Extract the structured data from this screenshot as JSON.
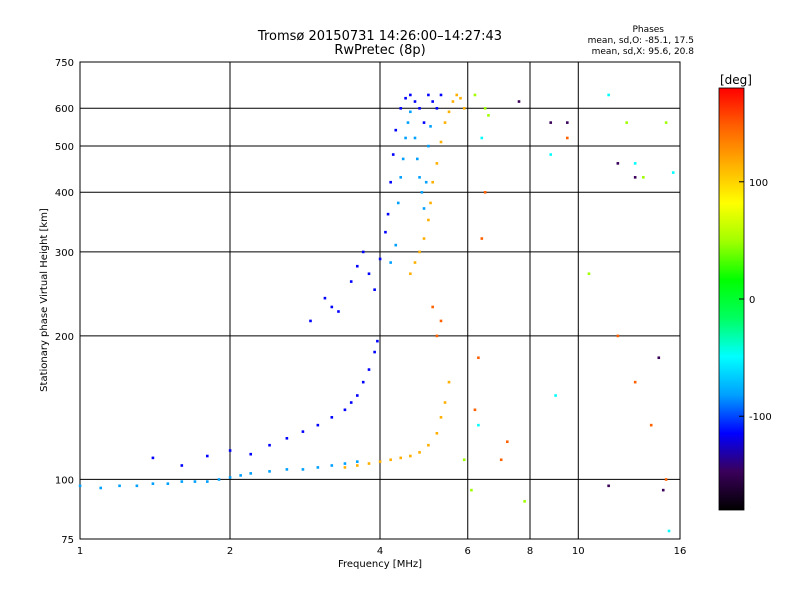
{
  "chart_data": {
    "type": "scatter",
    "title": "Tromsø 20150731 14:26:00–14:27:43",
    "subtitle": "RwPretec (8p)",
    "xlabel": "Frequency [MHz]",
    "ylabel": "Stationary phase Virtual Height [km]",
    "x_scale": "log",
    "y_scale": "log",
    "xlim": [
      1,
      16
    ],
    "ylim": [
      75,
      750
    ],
    "x_ticks": [
      1,
      2,
      4,
      6,
      8,
      10,
      16
    ],
    "y_ticks": [
      75,
      100,
      200,
      300,
      400,
      500,
      600,
      750
    ],
    "grid": true,
    "phase_stats": {
      "title": "Phases",
      "line_o": "mean, sd,O: -85.1, 17.5",
      "line_x": "mean, sd,X:  95.6, 20.8"
    },
    "colorbar": {
      "label": "[deg]",
      "min": -180,
      "max": 180,
      "ticks": [
        100,
        0,
        -100
      ],
      "colors": [
        "#000000",
        "#3a005a",
        "#0000ff",
        "#00a0ff",
        "#00ffff",
        "#00ff60",
        "#00ff00",
        "#a0ff00",
        "#ffff00",
        "#ffb000",
        "#ff6000",
        "#ff0000"
      ]
    },
    "series": [
      {
        "phase": -80,
        "points": [
          [
            1.0,
            97
          ],
          [
            1.1,
            96
          ],
          [
            1.2,
            97
          ],
          [
            1.3,
            97
          ],
          [
            1.4,
            98
          ],
          [
            1.5,
            98
          ],
          [
            1.6,
            99
          ],
          [
            1.7,
            99
          ],
          [
            1.8,
            99
          ],
          [
            1.9,
            100
          ],
          [
            2.0,
            101
          ],
          [
            2.1,
            102
          ],
          [
            2.2,
            103
          ],
          [
            2.4,
            104
          ],
          [
            2.6,
            105
          ],
          [
            2.8,
            105
          ],
          [
            3.0,
            106
          ],
          [
            3.2,
            107
          ],
          [
            3.4,
            108
          ],
          [
            3.6,
            109
          ]
        ]
      },
      {
        "phase": -110,
        "points": [
          [
            1.4,
            111
          ],
          [
            1.6,
            107
          ],
          [
            1.8,
            112
          ],
          [
            2.0,
            115
          ],
          [
            2.2,
            113
          ],
          [
            2.4,
            118
          ],
          [
            2.6,
            122
          ],
          [
            2.8,
            126
          ],
          [
            3.0,
            130
          ],
          [
            3.2,
            135
          ],
          [
            3.4,
            140
          ],
          [
            3.5,
            145
          ],
          [
            3.6,
            150
          ],
          [
            3.7,
            160
          ],
          [
            3.8,
            170
          ],
          [
            3.9,
            185
          ],
          [
            3.95,
            195
          ]
        ]
      },
      {
        "phase": -100,
        "points": [
          [
            2.9,
            215
          ],
          [
            3.1,
            240
          ],
          [
            3.2,
            230
          ],
          [
            3.3,
            225
          ],
          [
            3.5,
            260
          ],
          [
            3.6,
            280
          ],
          [
            3.7,
            300
          ],
          [
            3.8,
            270
          ],
          [
            3.9,
            250
          ],
          [
            4.0,
            290
          ],
          [
            4.1,
            330
          ],
          [
            4.15,
            360
          ],
          [
            4.2,
            420
          ],
          [
            4.25,
            480
          ],
          [
            4.3,
            540
          ],
          [
            4.4,
            600
          ],
          [
            4.5,
            630
          ],
          [
            4.6,
            640
          ],
          [
            4.7,
            620
          ],
          [
            4.8,
            600
          ],
          [
            4.9,
            560
          ],
          [
            5.0,
            640
          ],
          [
            5.1,
            620
          ],
          [
            5.2,
            600
          ],
          [
            5.3,
            640
          ]
        ]
      },
      {
        "phase": -95,
        "points": [
          [
            4.2,
            285
          ],
          [
            4.3,
            310
          ],
          [
            4.35,
            380
          ],
          [
            4.4,
            430
          ],
          [
            4.45,
            470
          ],
          [
            4.5,
            520
          ],
          [
            4.55,
            560
          ],
          [
            4.6,
            590
          ],
          [
            4.7,
            520
          ],
          [
            4.75,
            470
          ],
          [
            4.8,
            430
          ],
          [
            4.85,
            400
          ],
          [
            4.9,
            370
          ],
          [
            4.95,
            420
          ],
          [
            5.0,
            500
          ],
          [
            5.05,
            550
          ]
        ]
      },
      {
        "phase": 100,
        "points": [
          [
            3.4,
            106
          ],
          [
            3.6,
            107
          ],
          [
            3.8,
            108
          ],
          [
            4.0,
            109
          ],
          [
            4.2,
            110
          ],
          [
            4.4,
            111
          ],
          [
            4.6,
            112
          ],
          [
            4.8,
            114
          ],
          [
            5.0,
            118
          ],
          [
            5.2,
            125
          ],
          [
            5.3,
            135
          ],
          [
            5.4,
            145
          ],
          [
            5.5,
            160
          ]
        ]
      },
      {
        "phase": 110,
        "points": [
          [
            4.6,
            270
          ],
          [
            4.7,
            285
          ],
          [
            4.8,
            300
          ],
          [
            4.9,
            320
          ],
          [
            5.0,
            350
          ],
          [
            5.05,
            380
          ],
          [
            5.1,
            420
          ],
          [
            5.2,
            460
          ],
          [
            5.3,
            510
          ],
          [
            5.4,
            560
          ],
          [
            5.5,
            590
          ],
          [
            5.6,
            620
          ],
          [
            5.7,
            640
          ],
          [
            5.8,
            630
          ],
          [
            5.9,
            600
          ]
        ]
      },
      {
        "phase": 150,
        "points": [
          [
            5.1,
            230
          ],
          [
            5.3,
            215
          ],
          [
            5.2,
            200
          ],
          [
            6.5,
            400
          ],
          [
            6.4,
            320
          ],
          [
            6.3,
            180
          ],
          [
            6.2,
            140
          ],
          [
            7.0,
            110
          ],
          [
            7.2,
            120
          ],
          [
            9.5,
            520
          ],
          [
            12,
            200
          ],
          [
            13,
            160
          ],
          [
            14,
            130
          ],
          [
            15,
            100
          ]
        ]
      },
      {
        "phase": 40,
        "points": [
          [
            6.2,
            640
          ],
          [
            6.5,
            600
          ],
          [
            6.6,
            580
          ],
          [
            5.9,
            110
          ],
          [
            6.1,
            95
          ],
          [
            7.8,
            90
          ],
          [
            10.5,
            270
          ],
          [
            12.5,
            560
          ],
          [
            13.5,
            430
          ],
          [
            15,
            560
          ]
        ]
      },
      {
        "phase": -60,
        "points": [
          [
            6.4,
            520
          ],
          [
            8.8,
            480
          ],
          [
            9.0,
            150
          ],
          [
            11.5,
            640
          ],
          [
            13.0,
            460
          ],
          [
            15.5,
            440
          ],
          [
            15.2,
            78
          ],
          [
            6.3,
            130
          ]
        ]
      },
      {
        "phase": -140,
        "points": [
          [
            7.6,
            620
          ],
          [
            8.8,
            560
          ],
          [
            9.5,
            560
          ],
          [
            12.0,
            460
          ],
          [
            13.0,
            430
          ],
          [
            14.5,
            180
          ],
          [
            14.8,
            95
          ],
          [
            11.5,
            97
          ]
        ]
      }
    ]
  }
}
